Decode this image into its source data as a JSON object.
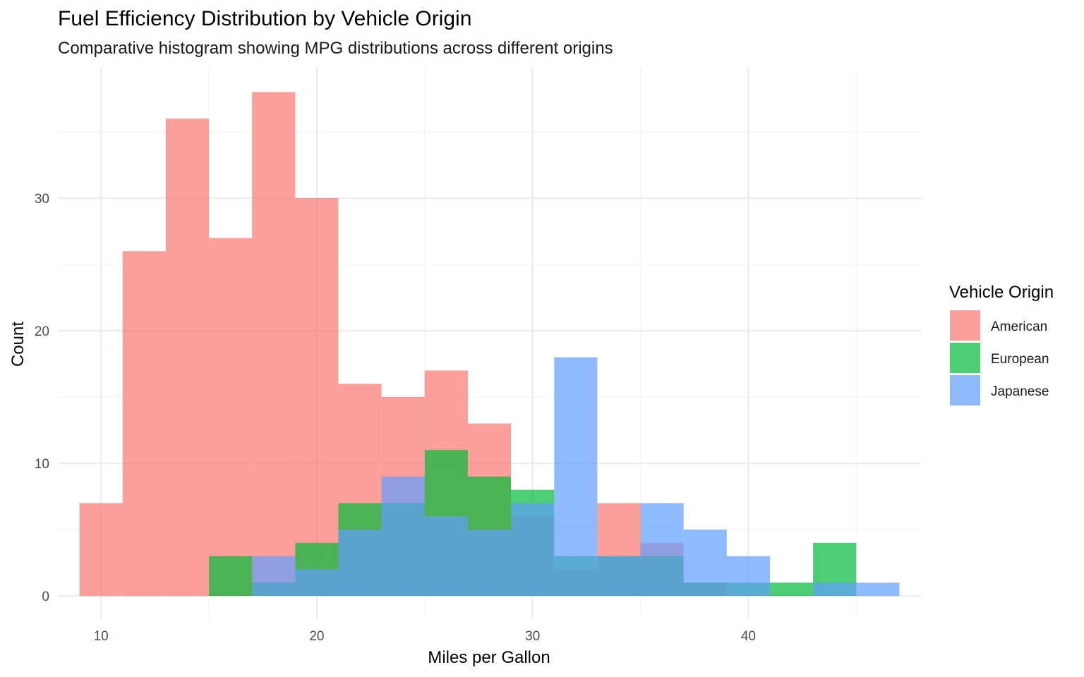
{
  "chart_data": {
    "type": "bar",
    "title": "Fuel Efficiency Distribution by Vehicle Origin",
    "subtitle": "Comparative histogram showing MPG distributions across different origins",
    "xlabel": "Miles per Gallon",
    "ylabel": "Count",
    "xlim": [
      8,
      48
    ],
    "ylim": [
      0,
      38
    ],
    "x_ticks": [
      10,
      20,
      30,
      40
    ],
    "y_ticks": [
      0,
      10,
      20,
      30
    ],
    "bin_width": 2,
    "grid": true,
    "legend": {
      "title": "Vehicle Origin",
      "position": "right",
      "entries": [
        "American",
        "European",
        "Japanese"
      ]
    },
    "series": [
      {
        "name": "American",
        "color": "#f8766d",
        "bins": [
          {
            "x": 10,
            "count": 7
          },
          {
            "x": 12,
            "count": 26
          },
          {
            "x": 14,
            "count": 36
          },
          {
            "x": 16,
            "count": 27
          },
          {
            "x": 18,
            "count": 38
          },
          {
            "x": 20,
            "count": 30
          },
          {
            "x": 22,
            "count": 16
          },
          {
            "x": 24,
            "count": 15
          },
          {
            "x": 26,
            "count": 17
          },
          {
            "x": 28,
            "count": 13
          },
          {
            "x": 30,
            "count": 6
          },
          {
            "x": 32,
            "count": 2
          },
          {
            "x": 34,
            "count": 7
          },
          {
            "x": 36,
            "count": 4
          },
          {
            "x": 38,
            "count": 1
          }
        ]
      },
      {
        "name": "European",
        "color": "#00ba38",
        "bins": [
          {
            "x": 16,
            "count": 3
          },
          {
            "x": 18,
            "count": 1
          },
          {
            "x": 20,
            "count": 4
          },
          {
            "x": 22,
            "count": 7
          },
          {
            "x": 24,
            "count": 7
          },
          {
            "x": 26,
            "count": 11
          },
          {
            "x": 28,
            "count": 9
          },
          {
            "x": 30,
            "count": 8
          },
          {
            "x": 32,
            "count": 3
          },
          {
            "x": 34,
            "count": 3
          },
          {
            "x": 36,
            "count": 3
          },
          {
            "x": 38,
            "count": 1
          },
          {
            "x": 40,
            "count": 1
          },
          {
            "x": 42,
            "count": 1
          },
          {
            "x": 44,
            "count": 4
          }
        ]
      },
      {
        "name": "Japanese",
        "color": "#619cff",
        "bins": [
          {
            "x": 18,
            "count": 3
          },
          {
            "x": 20,
            "count": 2
          },
          {
            "x": 22,
            "count": 5
          },
          {
            "x": 24,
            "count": 9
          },
          {
            "x": 26,
            "count": 6
          },
          {
            "x": 28,
            "count": 5
          },
          {
            "x": 30,
            "count": 7
          },
          {
            "x": 32,
            "count": 18
          },
          {
            "x": 34,
            "count": 3
          },
          {
            "x": 36,
            "count": 7
          },
          {
            "x": 38,
            "count": 5
          },
          {
            "x": 40,
            "count": 3
          },
          {
            "x": 44,
            "count": 1
          },
          {
            "x": 46,
            "count": 1
          }
        ]
      }
    ]
  }
}
